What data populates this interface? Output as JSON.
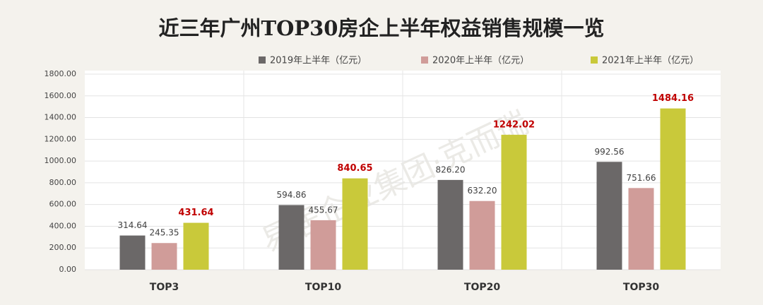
{
  "chart_data": {
    "type": "bar",
    "title": "近三年广州TOP30房企上半年权益销售规模一览",
    "watermark": "易居企业集团·克而瑞",
    "categories": [
      "TOP3",
      "TOP10",
      "TOP20",
      "TOP30"
    ],
    "series": [
      {
        "name": "2019年上半年（亿元）",
        "color": "#6b6868",
        "values": [
          314.64,
          594.86,
          826.2,
          992.56
        ],
        "value_labels": [
          "314.64",
          "594.86",
          "826.20",
          "992.56"
        ],
        "label_color": "#404040"
      },
      {
        "name": "2020年上半年（亿元）",
        "color": "#d09c99",
        "values": [
          245.35,
          455.67,
          632.2,
          751.66
        ],
        "value_labels": [
          "245.35",
          "455.67",
          "632.20",
          "751.66"
        ],
        "label_color": "#404040"
      },
      {
        "name": "2021年上半年（亿元）",
        "color": "#c9c93a",
        "values": [
          431.64,
          840.65,
          1242.02,
          1484.16
        ],
        "value_labels": [
          "431.64",
          "840.65",
          "1242.02",
          "1484.16"
        ],
        "label_color": "#c00000",
        "label_bold": true
      }
    ],
    "ylim": [
      0,
      1800
    ],
    "yticks": [
      {
        "value": 0,
        "label": "0.00"
      },
      {
        "value": 200,
        "label": "200.00"
      },
      {
        "value": 400,
        "label": "400.00"
      },
      {
        "value": 600,
        "label": "600.00"
      },
      {
        "value": 800,
        "label": "800.00"
      },
      {
        "value": 1000,
        "label": "1000.00"
      },
      {
        "value": 1200,
        "label": "1200.00"
      },
      {
        "value": 1400,
        "label": "1400.00"
      },
      {
        "value": 1600,
        "label": "1600.00"
      },
      {
        "value": 1800,
        "label": "1800.00"
      }
    ],
    "grid": true,
    "legend": "top"
  }
}
